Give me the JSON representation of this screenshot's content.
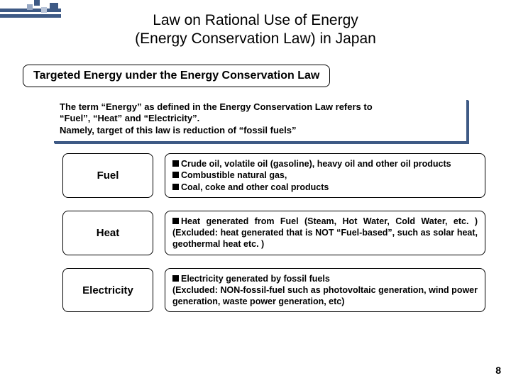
{
  "title": {
    "line1": "Law on Rational Use of Energy",
    "line2": "(Energy Conservation Law)  in Japan"
  },
  "subtitle": "Targeted Energy under the Energy Conservation Law",
  "intro": {
    "line1": "The term “Energy” as defined in the Energy Conservation Law refers to",
    "line2": "“Fuel”, “Heat” and “Electricity”.",
    "line3": "Namely, target of this law is reduction of “fossil fuels”"
  },
  "rows": [
    {
      "label": "Fuel",
      "items": [
        "Crude oil, volatile oil (gasoline), heavy oil and other oil products",
        "Combustible natural gas,",
        "Coal, coke and other coal products"
      ]
    },
    {
      "label": "Heat",
      "items": [
        "Heat generated from Fuel (Steam, Hot Water, Cold Water, etc. ) (Excluded: heat generated that is NOT “Fuel-based”, such as solar heat, geothermal heat etc. )"
      ]
    },
    {
      "label": "Electricity",
      "items": [
        "Electricity generated by fossil fuels"
      ],
      "trailing": "(Excluded: NON-fossil-fuel such as photovoltaic generation, wind power generation, waste power generation, etc)"
    }
  ],
  "page_number": "8",
  "colors": {
    "accent": "#3e5a85"
  }
}
